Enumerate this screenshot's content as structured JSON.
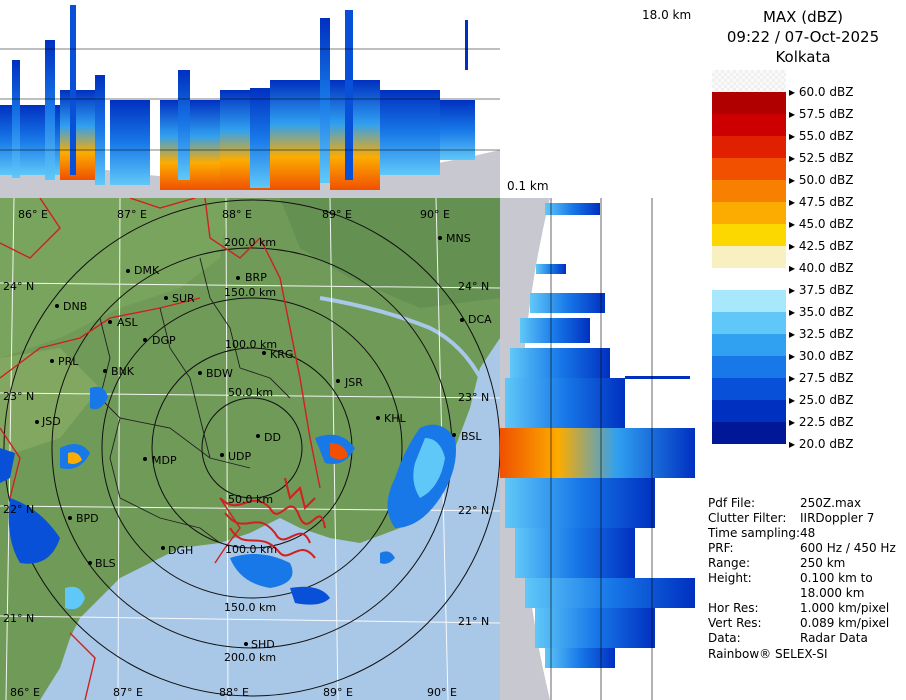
{
  "header": {
    "product": "MAX (dBZ)",
    "datetime": "09:22 / 07-Oct-2025",
    "station": "Kolkata"
  },
  "height_labels": {
    "top": "18.0 km",
    "bottom": "0.1 km"
  },
  "legend": {
    "entries": [
      {
        "label": "60.0 dBZ",
        "color": "#f4f4f4"
      },
      {
        "label": "57.5 dBZ",
        "color": "#b00000"
      },
      {
        "label": "55.0 dBZ",
        "color": "#cc0000"
      },
      {
        "label": "52.5 dBZ",
        "color": "#e02000"
      },
      {
        "label": "50.0 dBZ",
        "color": "#f05000"
      },
      {
        "label": "47.5 dBZ",
        "color": "#f88000"
      },
      {
        "label": "45.0 dBZ",
        "color": "#fcac00"
      },
      {
        "label": "42.5 dBZ",
        "color": "#fcd800"
      },
      {
        "label": "40.0 dBZ",
        "color": "#f8f0c0"
      },
      {
        "label": "37.5 dBZ",
        "color": "#ffffff"
      },
      {
        "label": "35.0 dBZ",
        "color": "#a8e8fc"
      },
      {
        "label": "32.5 dBZ",
        "color": "#60c8f8"
      },
      {
        "label": "30.0 dBZ",
        "color": "#30a0f0"
      },
      {
        "label": "27.5 dBZ",
        "color": "#1878e8"
      },
      {
        "label": "25.0 dBZ",
        "color": "#0850d8"
      },
      {
        "label": "22.5 dBZ",
        "color": "#0030c0"
      },
      {
        "label": "20.0 dBZ",
        "color": "#001898"
      }
    ]
  },
  "info": [
    {
      "label": "Pdf File:",
      "value": "250Z.max"
    },
    {
      "label": "Clutter Filter:",
      "value": "IIRDoppler 7"
    },
    {
      "label": "Time sampling:",
      "value": "48"
    },
    {
      "label": "PRF:",
      "value": "600 Hz / 450 Hz"
    },
    {
      "label": "Range:",
      "value": "250 km"
    },
    {
      "label": "Height:",
      "value": "0.100 km to"
    },
    {
      "label": "",
      "value": "18.000 km"
    },
    {
      "label": "Hor Res:",
      "value": "1.000 km/pixel"
    },
    {
      "label": "Vert Res:",
      "value": "0.089 km/pixel"
    },
    {
      "label": "Data:",
      "value": "Radar Data"
    }
  ],
  "footer": "Rainbow® SELEX-SI",
  "map": {
    "lon_top": [
      "86° E",
      "87° E",
      "88° E",
      "89° E",
      "90° E"
    ],
    "lon_bottom": [
      "86° E",
      "87° E",
      "88° E",
      "89° E",
      "90° E"
    ],
    "lat_left": [
      "24° N",
      "23° N",
      "22° N",
      "21° N"
    ],
    "lat_right": [
      "24° N",
      "23° N",
      "22° N",
      "21° N"
    ],
    "range_labels": [
      "50.0 km",
      "100.0 km",
      "150.0 km",
      "200.0 km",
      "50.0 km",
      "100.0 km",
      "150.0 km",
      "200.0 km"
    ],
    "cities": [
      "MNS",
      "DMK",
      "BRP",
      "SUR",
      "DNB",
      "ASL",
      "DCA",
      "DGP",
      "KRG",
      "PRL",
      "BNK",
      "BDW",
      "JSR",
      "JSD",
      "KHL",
      "DD",
      "BSL",
      "UDP",
      "MDP",
      "BPD",
      "DGH",
      "BLS",
      "SHD"
    ],
    "colors": {
      "land": "#6f9a58",
      "sea": "#a9c7e6",
      "boundary": "#d02020",
      "district": "#202020",
      "rings": "#101010",
      "grid": "#ffffff"
    }
  }
}
